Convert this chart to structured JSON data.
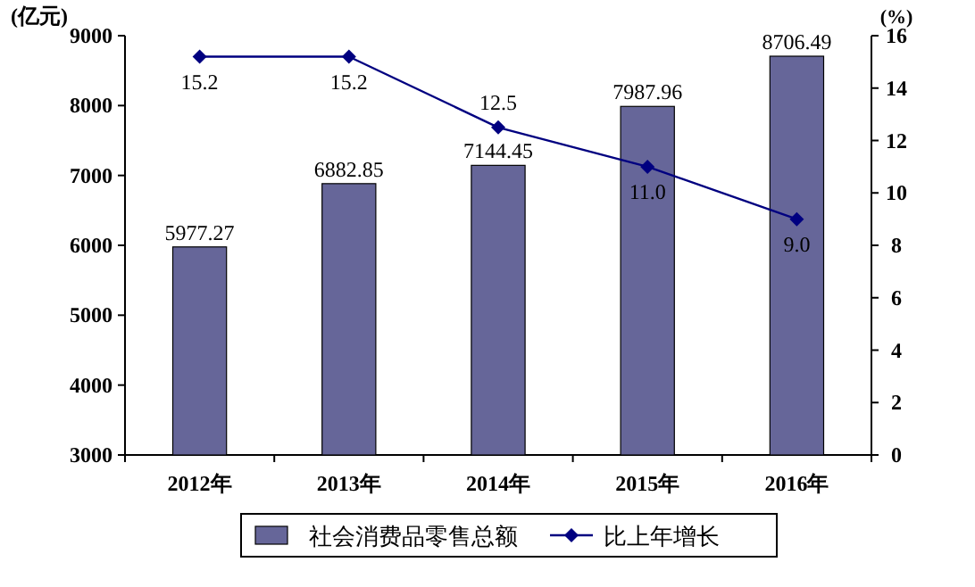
{
  "chart_data": {
    "type": "bar",
    "ylabel": "(亿元)",
    "y2label": "(%)",
    "categories": [
      "2012年",
      "2013年",
      "2014年",
      "2015年",
      "2016年"
    ],
    "series": [
      {
        "name": "社会消费品零售总额",
        "color": "#666699",
        "values": [
          5977.27,
          6882.85,
          7144.45,
          7987.96,
          8706.49
        ],
        "value_labels": [
          "5977.27",
          "6882.85",
          "7144.45",
          "7987.96",
          "8706.49"
        ]
      },
      {
        "name": "比上年增长",
        "type": "line",
        "axis": "y2",
        "color": "#000080",
        "marker": "diamond",
        "values": [
          15.2,
          15.2,
          12.5,
          11.0,
          9.0
        ],
        "value_labels": [
          "15.2",
          "15.2",
          "12.5",
          "11.0",
          "9.0"
        ]
      }
    ],
    "ylim": [
      3000,
      9000
    ],
    "yticks": [
      3000,
      4000,
      5000,
      6000,
      7000,
      8000,
      9000
    ],
    "y2lim": [
      0,
      16
    ],
    "y2ticks": [
      0,
      2,
      4,
      6,
      8,
      10,
      12,
      14,
      16
    ],
    "grid": false,
    "legend": "bottom"
  }
}
